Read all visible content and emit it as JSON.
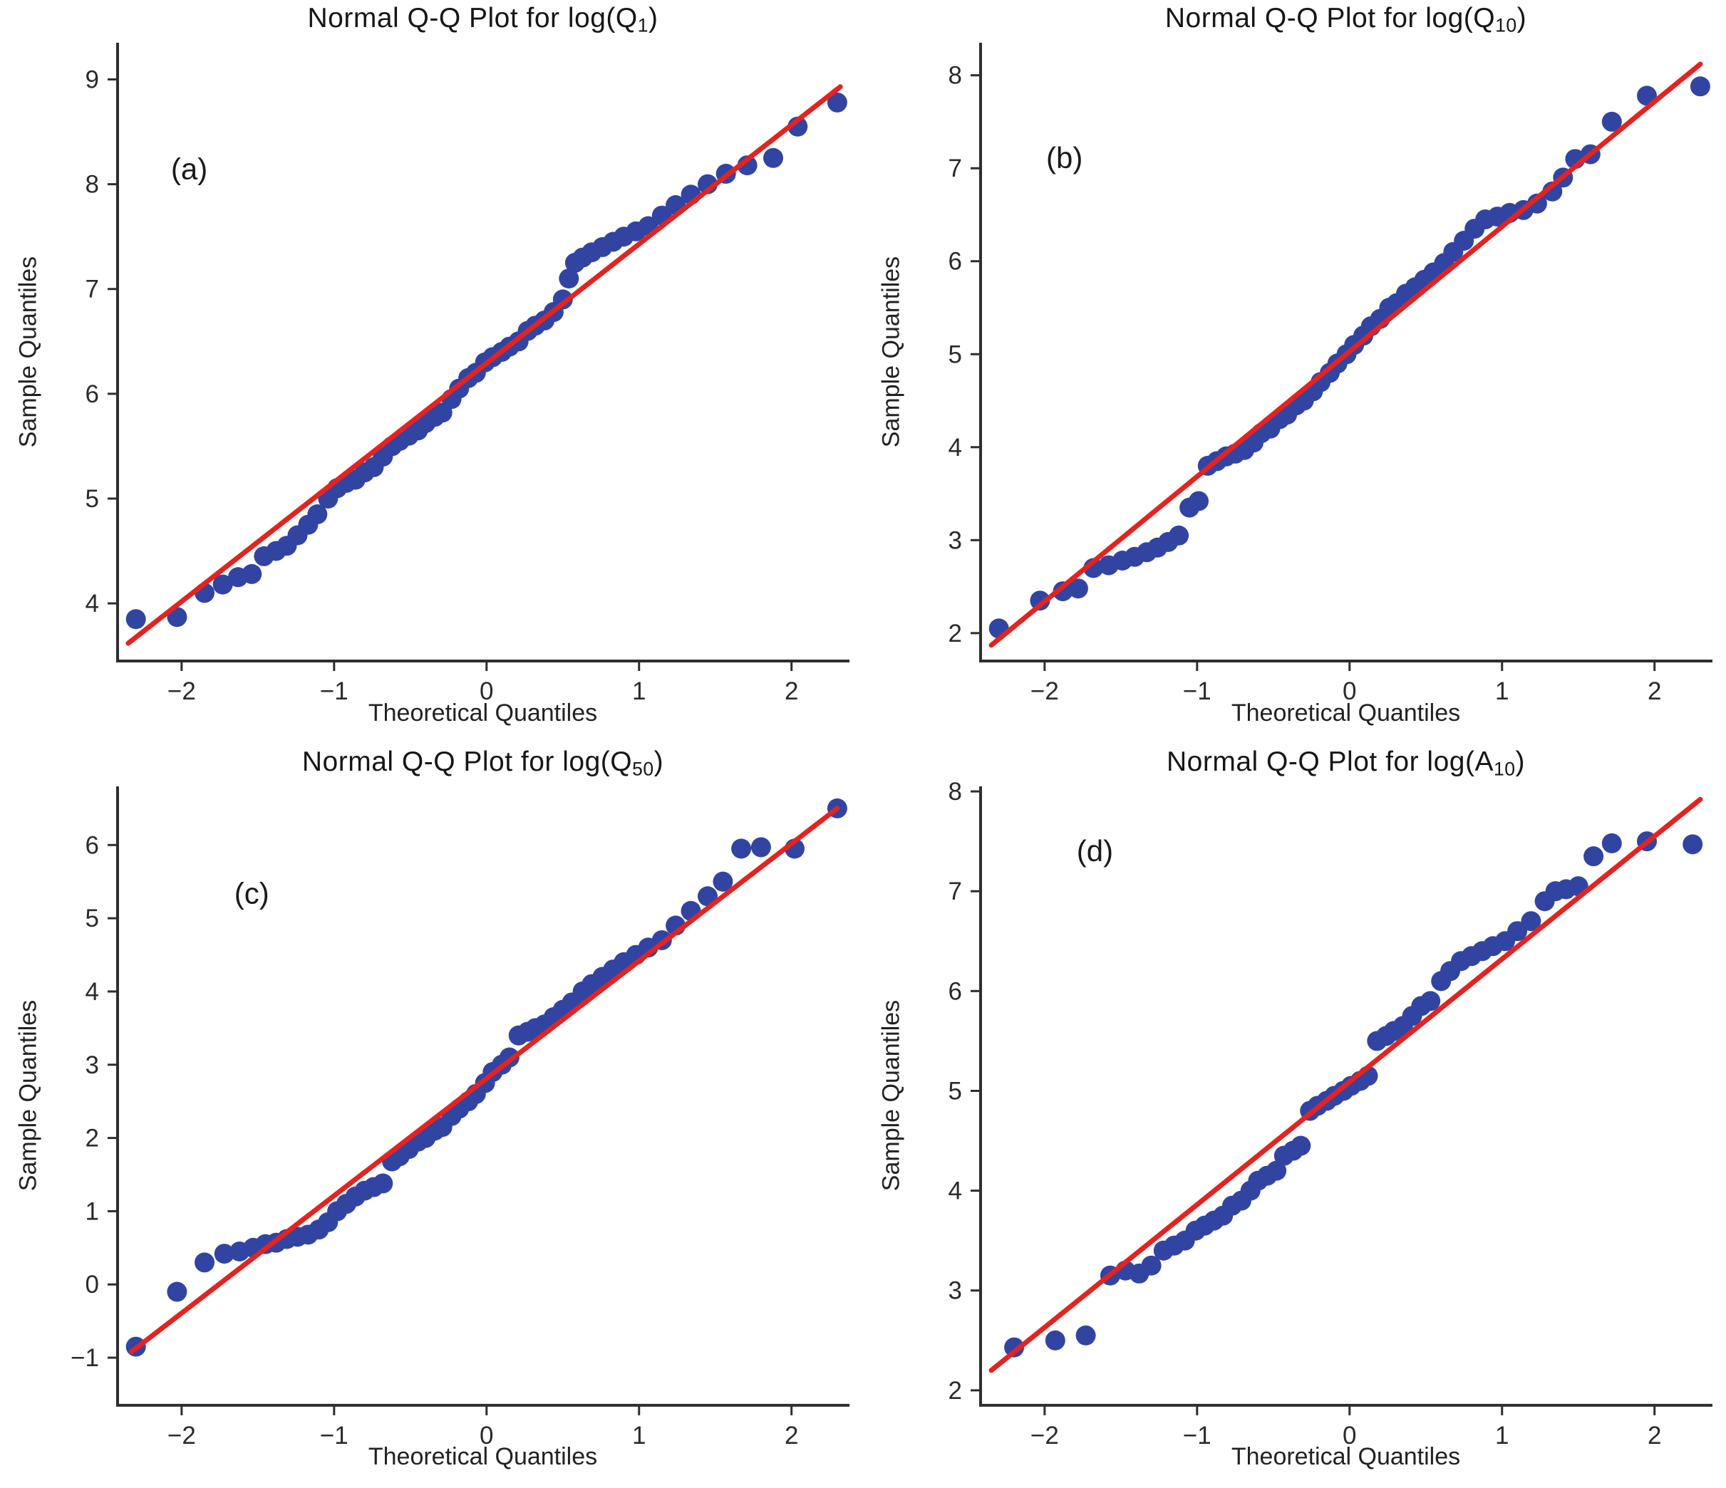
{
  "page": {
    "background": "#ffffff"
  },
  "styles": {
    "dot_color": "#3244a2",
    "fit_line_color": "#e42320",
    "axis_color": "#2e2e2e",
    "tick_label_color": "#2b2b2b",
    "annotation_color": "#1a1a1a"
  },
  "chart_data": [
    {
      "type": "scatter",
      "title_pre": "Normal Q-Q Plot for log(Q",
      "title_sub": "1",
      "title_post": ")",
      "panel_label": "(a)",
      "panel_label_pos": [
        -1.95,
        8.05
      ],
      "xlabel": "Theoretical Quantiles",
      "ylabel": "Sample Quantiles",
      "xlim": [
        -2.42,
        2.38
      ],
      "ylim": [
        3.45,
        9.35
      ],
      "xticks": [
        -2,
        -1,
        0,
        1,
        2
      ],
      "yticks": [
        4,
        5,
        6,
        7,
        8,
        9
      ],
      "grid": false,
      "legend": "none",
      "fit_line": {
        "x": [
          -2.35,
          2.32
        ],
        "y": [
          3.62,
          8.93
        ]
      },
      "points": [
        [
          -2.3,
          3.85
        ],
        [
          -2.03,
          3.87
        ],
        [
          -1.85,
          4.1
        ],
        [
          -1.73,
          4.18
        ],
        [
          -1.63,
          4.25
        ],
        [
          -1.54,
          4.28
        ],
        [
          -1.46,
          4.45
        ],
        [
          -1.38,
          4.5
        ],
        [
          -1.31,
          4.55
        ],
        [
          -1.24,
          4.65
        ],
        [
          -1.17,
          4.75
        ],
        [
          -1.11,
          4.85
        ],
        [
          -1.04,
          5.0
        ],
        [
          -0.98,
          5.1
        ],
        [
          -0.92,
          5.15
        ],
        [
          -0.86,
          5.18
        ],
        [
          -0.8,
          5.25
        ],
        [
          -0.74,
          5.3
        ],
        [
          -0.68,
          5.4
        ],
        [
          -0.62,
          5.5
        ],
        [
          -0.57,
          5.55
        ],
        [
          -0.51,
          5.6
        ],
        [
          -0.45,
          5.65
        ],
        [
          -0.4,
          5.72
        ],
        [
          -0.34,
          5.78
        ],
        [
          -0.29,
          5.82
        ],
        [
          -0.23,
          5.95
        ],
        [
          -0.18,
          6.05
        ],
        [
          -0.12,
          6.15
        ],
        [
          -0.07,
          6.2
        ],
        [
          -0.01,
          6.3
        ],
        [
          0.04,
          6.35
        ],
        [
          0.1,
          6.4
        ],
        [
          0.15,
          6.45
        ],
        [
          0.21,
          6.5
        ],
        [
          0.27,
          6.6
        ],
        [
          0.32,
          6.65
        ],
        [
          0.38,
          6.7
        ],
        [
          0.44,
          6.78
        ],
        [
          0.5,
          6.9
        ],
        [
          0.54,
          7.1
        ],
        [
          0.58,
          7.25
        ],
        [
          0.63,
          7.3
        ],
        [
          0.69,
          7.35
        ],
        [
          0.76,
          7.4
        ],
        [
          0.83,
          7.45
        ],
        [
          0.9,
          7.5
        ],
        [
          0.98,
          7.55
        ],
        [
          1.06,
          7.6
        ],
        [
          1.15,
          7.7
        ],
        [
          1.24,
          7.8
        ],
        [
          1.34,
          7.9
        ],
        [
          1.45,
          8.0
        ],
        [
          1.57,
          8.1
        ],
        [
          1.71,
          8.18
        ],
        [
          1.88,
          8.25
        ],
        [
          2.04,
          8.55
        ],
        [
          2.3,
          8.78
        ]
      ]
    },
    {
      "type": "scatter",
      "title_pre": "Normal Q-Q Plot for log(Q",
      "title_sub": "10",
      "title_post": ")",
      "panel_label": "(b)",
      "panel_label_pos": [
        -1.87,
        7.0
      ],
      "xlabel": "Theoretical Quantiles",
      "ylabel": "Sample Quantiles",
      "xlim": [
        -2.42,
        2.38
      ],
      "ylim": [
        1.7,
        8.35
      ],
      "xticks": [
        -2,
        -1,
        0,
        1,
        2
      ],
      "yticks": [
        2,
        3,
        4,
        5,
        6,
        7,
        8
      ],
      "grid": false,
      "legend": "none",
      "fit_line": {
        "x": [
          -2.35,
          2.3
        ],
        "y": [
          1.87,
          8.12
        ]
      },
      "points": [
        [
          -2.3,
          2.05
        ],
        [
          -2.03,
          2.35
        ],
        [
          -1.88,
          2.45
        ],
        [
          -1.78,
          2.48
        ],
        [
          -1.68,
          2.7
        ],
        [
          -1.58,
          2.73
        ],
        [
          -1.49,
          2.78
        ],
        [
          -1.41,
          2.82
        ],
        [
          -1.33,
          2.87
        ],
        [
          -1.26,
          2.92
        ],
        [
          -1.19,
          2.98
        ],
        [
          -1.12,
          3.05
        ],
        [
          -1.05,
          3.35
        ],
        [
          -0.99,
          3.42
        ],
        [
          -0.93,
          3.8
        ],
        [
          -0.87,
          3.85
        ],
        [
          -0.81,
          3.9
        ],
        [
          -0.75,
          3.93
        ],
        [
          -0.69,
          3.97
        ],
        [
          -0.63,
          4.05
        ],
        [
          -0.58,
          4.15
        ],
        [
          -0.52,
          4.2
        ],
        [
          -0.46,
          4.3
        ],
        [
          -0.41,
          4.35
        ],
        [
          -0.35,
          4.45
        ],
        [
          -0.3,
          4.5
        ],
        [
          -0.24,
          4.6
        ],
        [
          -0.19,
          4.7
        ],
        [
          -0.13,
          4.8
        ],
        [
          -0.08,
          4.9
        ],
        [
          -0.02,
          5.0
        ],
        [
          0.03,
          5.1
        ],
        [
          0.09,
          5.2
        ],
        [
          0.14,
          5.3
        ],
        [
          0.2,
          5.38
        ],
        [
          0.26,
          5.5
        ],
        [
          0.31,
          5.55
        ],
        [
          0.37,
          5.65
        ],
        [
          0.43,
          5.72
        ],
        [
          0.49,
          5.8
        ],
        [
          0.55,
          5.88
        ],
        [
          0.62,
          5.98
        ],
        [
          0.68,
          6.1
        ],
        [
          0.75,
          6.22
        ],
        [
          0.82,
          6.35
        ],
        [
          0.89,
          6.45
        ],
        [
          0.97,
          6.48
        ],
        [
          1.05,
          6.52
        ],
        [
          1.14,
          6.55
        ],
        [
          1.23,
          6.62
        ],
        [
          1.33,
          6.75
        ],
        [
          1.4,
          6.9
        ],
        [
          1.48,
          7.1
        ],
        [
          1.58,
          7.15
        ],
        [
          1.72,
          7.5
        ],
        [
          1.95,
          7.78
        ],
        [
          2.3,
          7.88
        ]
      ]
    },
    {
      "type": "scatter",
      "title_pre": "Normal Q-Q Plot for log(Q",
      "title_sub": "50",
      "title_post": ")",
      "panel_label": "(c)",
      "panel_label_pos": [
        -1.54,
        5.2
      ],
      "xlabel": "Theoretical Quantiles",
      "ylabel": "Sample Quantiles",
      "xlim": [
        -2.42,
        2.38
      ],
      "ylim": [
        -1.65,
        6.8
      ],
      "xticks": [
        -2,
        -1,
        0,
        1,
        2
      ],
      "yticks": [
        -1,
        0,
        1,
        2,
        3,
        4,
        5,
        6
      ],
      "grid": false,
      "legend": "none",
      "fit_line": {
        "x": [
          -2.33,
          2.3
        ],
        "y": [
          -0.92,
          6.5
        ]
      },
      "points": [
        [
          -2.3,
          -0.85
        ],
        [
          -2.03,
          -0.1
        ],
        [
          -1.85,
          0.3
        ],
        [
          -1.72,
          0.42
        ],
        [
          -1.62,
          0.45
        ],
        [
          -1.53,
          0.5
        ],
        [
          -1.45,
          0.55
        ],
        [
          -1.38,
          0.57
        ],
        [
          -1.31,
          0.62
        ],
        [
          -1.24,
          0.65
        ],
        [
          -1.17,
          0.68
        ],
        [
          -1.1,
          0.75
        ],
        [
          -1.04,
          0.85
        ],
        [
          -0.98,
          1.0
        ],
        [
          -0.92,
          1.1
        ],
        [
          -0.86,
          1.2
        ],
        [
          -0.8,
          1.28
        ],
        [
          -0.74,
          1.33
        ],
        [
          -0.68,
          1.38
        ],
        [
          -0.62,
          1.68
        ],
        [
          -0.57,
          1.75
        ],
        [
          -0.51,
          1.85
        ],
        [
          -0.45,
          1.95
        ],
        [
          -0.4,
          2.0
        ],
        [
          -0.34,
          2.1
        ],
        [
          -0.29,
          2.15
        ],
        [
          -0.23,
          2.3
        ],
        [
          -0.18,
          2.4
        ],
        [
          -0.12,
          2.5
        ],
        [
          -0.07,
          2.6
        ],
        [
          -0.01,
          2.75
        ],
        [
          0.04,
          2.9
        ],
        [
          0.1,
          3.0
        ],
        [
          0.15,
          3.1
        ],
        [
          0.21,
          3.4
        ],
        [
          0.27,
          3.45
        ],
        [
          0.32,
          3.5
        ],
        [
          0.38,
          3.55
        ],
        [
          0.44,
          3.65
        ],
        [
          0.5,
          3.75
        ],
        [
          0.56,
          3.85
        ],
        [
          0.63,
          4.0
        ],
        [
          0.69,
          4.1
        ],
        [
          0.76,
          4.2
        ],
        [
          0.83,
          4.3
        ],
        [
          0.9,
          4.4
        ],
        [
          0.98,
          4.5
        ],
        [
          1.06,
          4.6
        ],
        [
          1.15,
          4.7
        ],
        [
          1.24,
          4.9
        ],
        [
          1.34,
          5.1
        ],
        [
          1.45,
          5.3
        ],
        [
          1.55,
          5.5
        ],
        [
          1.67,
          5.95
        ],
        [
          1.8,
          5.97
        ],
        [
          2.02,
          5.95
        ],
        [
          2.3,
          6.5
        ]
      ]
    },
    {
      "type": "scatter",
      "title_pre": "Normal Q-Q Plot for log(A",
      "title_sub": "10",
      "title_post": ")",
      "panel_label": "(d)",
      "panel_label_pos": [
        -1.67,
        7.3
      ],
      "xlabel": "Theoretical Quantiles",
      "ylabel": "Sample Quantiles",
      "xlim": [
        -2.42,
        2.38
      ],
      "ylim": [
        1.85,
        8.05
      ],
      "xticks": [
        -2,
        -1,
        0,
        1,
        2
      ],
      "yticks": [
        2,
        3,
        4,
        5,
        6,
        7,
        8
      ],
      "grid": false,
      "legend": "none",
      "fit_line": {
        "x": [
          -2.35,
          2.3
        ],
        "y": [
          2.2,
          7.92
        ]
      },
      "points": [
        [
          -2.2,
          2.43
        ],
        [
          -1.93,
          2.5
        ],
        [
          -1.73,
          2.55
        ],
        [
          -1.57,
          3.15
        ],
        [
          -1.47,
          3.2
        ],
        [
          -1.38,
          3.17
        ],
        [
          -1.3,
          3.25
        ],
        [
          -1.22,
          3.4
        ],
        [
          -1.15,
          3.45
        ],
        [
          -1.08,
          3.5
        ],
        [
          -1.01,
          3.6
        ],
        [
          -0.95,
          3.65
        ],
        [
          -0.89,
          3.7
        ],
        [
          -0.83,
          3.75
        ],
        [
          -0.77,
          3.85
        ],
        [
          -0.71,
          3.9
        ],
        [
          -0.65,
          4.0
        ],
        [
          -0.6,
          4.1
        ],
        [
          -0.54,
          4.15
        ],
        [
          -0.48,
          4.2
        ],
        [
          -0.43,
          4.35
        ],
        [
          -0.37,
          4.4
        ],
        [
          -0.32,
          4.45
        ],
        [
          -0.26,
          4.8
        ],
        [
          -0.21,
          4.85
        ],
        [
          -0.15,
          4.9
        ],
        [
          -0.1,
          4.95
        ],
        [
          -0.04,
          5.0
        ],
        [
          0.01,
          5.05
        ],
        [
          0.07,
          5.1
        ],
        [
          0.12,
          5.15
        ],
        [
          0.18,
          5.5
        ],
        [
          0.24,
          5.55
        ],
        [
          0.29,
          5.6
        ],
        [
          0.35,
          5.65
        ],
        [
          0.41,
          5.75
        ],
        [
          0.47,
          5.85
        ],
        [
          0.53,
          5.9
        ],
        [
          0.6,
          6.1
        ],
        [
          0.66,
          6.2
        ],
        [
          0.73,
          6.3
        ],
        [
          0.8,
          6.35
        ],
        [
          0.87,
          6.4
        ],
        [
          0.94,
          6.45
        ],
        [
          1.02,
          6.5
        ],
        [
          1.1,
          6.6
        ],
        [
          1.19,
          6.7
        ],
        [
          1.28,
          6.9
        ],
        [
          1.35,
          7.0
        ],
        [
          1.42,
          7.02
        ],
        [
          1.5,
          7.05
        ],
        [
          1.6,
          7.35
        ],
        [
          1.72,
          7.48
        ],
        [
          1.95,
          7.5
        ],
        [
          2.25,
          7.47
        ]
      ]
    }
  ]
}
